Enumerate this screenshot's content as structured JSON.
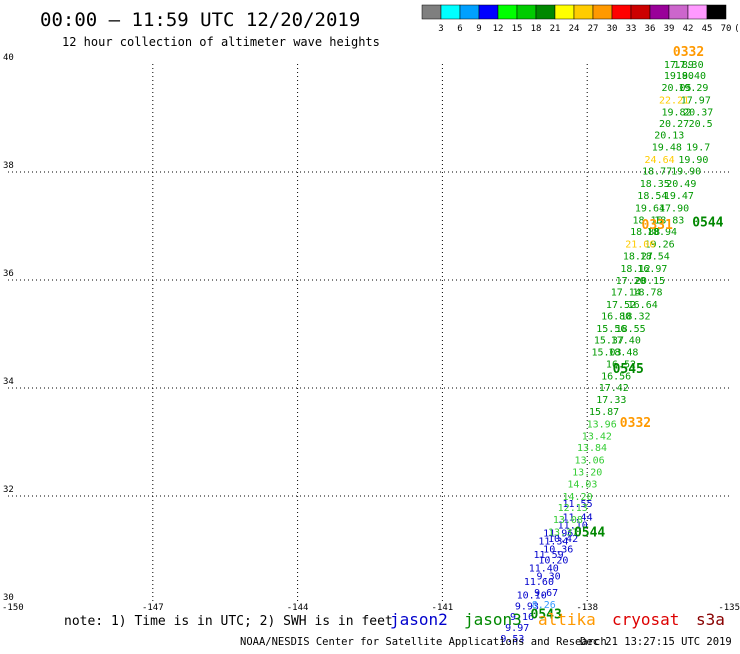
{
  "header": {
    "title": "00:00 – 11:59 UTC 12/20/2019",
    "subtitle": "12 hour collection of altimeter wave heights"
  },
  "legend_scale": {
    "labels": [
      "3",
      "6",
      "9",
      "12",
      "15",
      "18",
      "21",
      "24",
      "27",
      "30",
      "33",
      "36",
      "39",
      "42",
      "45",
      "70",
      "(ft)"
    ],
    "colors": [
      "#7f7f7f",
      "#00ffff",
      "#00a0ff",
      "#0000ff",
      "#00ff00",
      "#00cc00",
      "#008800",
      "#ffff00",
      "#ffcc00",
      "#ff9900",
      "#ff0000",
      "#cc0000",
      "#990099",
      "#cc66cc",
      "#ff99ff",
      "#000000"
    ]
  },
  "footer": {
    "note": "note:  1) Time is in UTC;  2) SWH is in feet",
    "credit": "NOAA/NESDIS Center for Satellite Applications and Research",
    "timestamp": "Dec 21 13:27:15 UTC 2019"
  },
  "satellite_legend": [
    {
      "name": "jason2",
      "color": "#0000cc"
    },
    {
      "name": "jason3",
      "color": "#008800"
    },
    {
      "name": "altika",
      "color": "#ff9900"
    },
    {
      "name": "cryosat",
      "color": "#dd0000"
    },
    {
      "name": "s3a",
      "color": "#880000"
    }
  ],
  "chart_data": {
    "type": "scatter",
    "xlim": [
      -150,
      -135
    ],
    "ylim": [
      30,
      40
    ],
    "x_ticks": [
      "-150",
      "-147",
      "-144",
      "-141",
      "-138",
      "-135"
    ],
    "y_ticks": [
      "30",
      "32",
      "34",
      "36",
      "38",
      "40"
    ],
    "grid": true,
    "series": [
      {
        "name": "jason2",
        "color": "#0000cc",
        "points": [
          {
            "lon": -138.2,
            "lat": 31.8,
            "value": "11.55"
          },
          {
            "lon": -138.2,
            "lat": 31.55,
            "value": "11.44"
          },
          {
            "lon": -138.3,
            "lat": 31.4,
            "value": "11.10"
          },
          {
            "lon": -138.5,
            "lat": 31.15,
            "value": "10.42"
          },
          {
            "lon": -138.6,
            "lat": 30.95,
            "value": "10.36"
          },
          {
            "lon": -138.7,
            "lat": 30.75,
            "value": "10.20"
          },
          {
            "lon": -138.8,
            "lat": 30.45,
            "value": "9.30"
          },
          {
            "lon": -138.85,
            "lat": 30.15,
            "value": "9.67"
          },
          {
            "lon": -138.6,
            "lat": 31.25,
            "value": "11.96"
          },
          {
            "lon": -138.7,
            "lat": 31.1,
            "value": "11.34"
          },
          {
            "lon": -138.8,
            "lat": 30.85,
            "value": "11.59"
          },
          {
            "lon": -138.9,
            "lat": 30.6,
            "value": "11.40"
          },
          {
            "lon": -139.0,
            "lat": 30.35,
            "value": "11.60"
          },
          {
            "lon": -139.15,
            "lat": 30.1,
            "value": "10.10"
          },
          {
            "lon": -139.25,
            "lat": 29.9,
            "value": "9.93"
          },
          {
            "lon": -139.35,
            "lat": 29.7,
            "value": "9.16"
          },
          {
            "lon": -139.45,
            "lat": 29.5,
            "value": "9.97"
          },
          {
            "lon": -139.55,
            "lat": 29.3,
            "value": "9.53"
          }
        ]
      },
      {
        "name": "jason3",
        "color": "#009900",
        "points": [
          {
            "lon": -136.1,
            "lat": 39.93,
            "value": "17.89"
          },
          {
            "lon": -136.1,
            "lat": 39.72,
            "value": "19.90"
          },
          {
            "lon": -136.15,
            "lat": 39.5,
            "value": "20.05"
          },
          {
            "lon": -136.15,
            "lat": 39.05,
            "value": "19.82"
          },
          {
            "lon": -136.2,
            "lat": 38.83,
            "value": "20.27"
          },
          {
            "lon": -136.3,
            "lat": 38.62,
            "value": "20.13"
          },
          {
            "lon": -136.35,
            "lat": 38.4,
            "value": "19.48"
          },
          {
            "lon": -136.55,
            "lat": 37.95,
            "value": "18.77"
          },
          {
            "lon": -136.6,
            "lat": 37.72,
            "value": "18.35"
          },
          {
            "lon": -136.65,
            "lat": 37.5,
            "value": "18.54"
          },
          {
            "lon": -136.7,
            "lat": 37.27,
            "value": "19.64"
          },
          {
            "lon": -136.75,
            "lat": 37.05,
            "value": "18.15"
          },
          {
            "lon": -136.8,
            "lat": 36.83,
            "value": "18.88"
          },
          {
            "lon": -136.95,
            "lat": 36.38,
            "value": "18.27"
          },
          {
            "lon": -137.0,
            "lat": 36.15,
            "value": "18.12"
          },
          {
            "lon": -137.1,
            "lat": 35.93,
            "value": "17.20"
          },
          {
            "lon": -137.2,
            "lat": 35.71,
            "value": "17.14"
          },
          {
            "lon": -137.3,
            "lat": 35.48,
            "value": "17.52"
          },
          {
            "lon": -137.4,
            "lat": 35.27,
            "value": "16.80"
          },
          {
            "lon": -137.5,
            "lat": 35.04,
            "value": "15.56"
          },
          {
            "lon": -137.55,
            "lat": 34.82,
            "value": "15.37"
          },
          {
            "lon": -137.6,
            "lat": 34.6,
            "value": "15.03"
          },
          {
            "lon": -135.9,
            "lat": 39.93,
            "value": "17.30"
          },
          {
            "lon": -135.85,
            "lat": 39.72,
            "value": "18.40"
          },
          {
            "lon": -135.8,
            "lat": 39.5,
            "value": "19.29"
          },
          {
            "lon": -135.75,
            "lat": 39.27,
            "value": "17.97"
          },
          {
            "lon": -135.7,
            "lat": 39.05,
            "value": "20.37"
          },
          {
            "lon": -135.65,
            "lat": 38.83,
            "value": "20.5"
          },
          {
            "lon": -135.7,
            "lat": 38.4,
            "value": "19.7"
          },
          {
            "lon": -135.8,
            "lat": 38.17,
            "value": "19.90"
          },
          {
            "lon": -135.95,
            "lat": 37.95,
            "value": "19.90"
          },
          {
            "lon": -136.05,
            "lat": 37.72,
            "value": "20.49"
          },
          {
            "lon": -136.1,
            "lat": 37.5,
            "value": "19.47"
          },
          {
            "lon": -136.2,
            "lat": 37.27,
            "value": "17.90"
          },
          {
            "lon": -136.3,
            "lat": 37.05,
            "value": "18.83"
          },
          {
            "lon": -136.45,
            "lat": 36.83,
            "value": "18.94"
          },
          {
            "lon": -136.5,
            "lat": 36.6,
            "value": "19.26"
          },
          {
            "lon": -136.6,
            "lat": 36.38,
            "value": "18.54"
          },
          {
            "lon": -136.65,
            "lat": 36.15,
            "value": "16.97"
          },
          {
            "lon": -136.7,
            "lat": 35.93,
            "value": "20.15"
          },
          {
            "lon": -136.75,
            "lat": 35.71,
            "value": "18.78"
          },
          {
            "lon": -136.85,
            "lat": 35.48,
            "value": "16.64"
          },
          {
            "lon": -137.0,
            "lat": 35.27,
            "value": "18.32"
          },
          {
            "lon": -137.1,
            "lat": 35.04,
            "value": "18.55"
          },
          {
            "lon": -137.2,
            "lat": 34.82,
            "value": "17.40"
          },
          {
            "lon": -137.25,
            "lat": 34.6,
            "value": "18.48"
          },
          {
            "lon": -137.3,
            "lat": 34.38,
            "value": "16.52"
          },
          {
            "lon": -137.4,
            "lat": 34.16,
            "value": "16.56"
          },
          {
            "lon": -137.45,
            "lat": 33.94,
            "value": "17.42"
          },
          {
            "lon": -137.5,
            "lat": 33.72,
            "value": "17.33"
          },
          {
            "lon": -137.65,
            "lat": 33.5,
            "value": "15.87"
          }
        ]
      },
      {
        "name": "jason3-light",
        "color": "#33cc33",
        "points": [
          {
            "lon": -137.7,
            "lat": 33.27,
            "value": "13.96"
          },
          {
            "lon": -137.8,
            "lat": 33.05,
            "value": "13.42"
          },
          {
            "lon": -137.9,
            "lat": 32.83,
            "value": "13.84"
          },
          {
            "lon": -137.95,
            "lat": 32.6,
            "value": "13.06"
          },
          {
            "lon": -138.0,
            "lat": 32.38,
            "value": "13.20"
          },
          {
            "lon": -138.1,
            "lat": 32.16,
            "value": "14.03"
          },
          {
            "lon": -138.2,
            "lat": 31.93,
            "value": "14.20"
          },
          {
            "lon": -138.3,
            "lat": 31.72,
            "value": "12.13"
          },
          {
            "lon": -138.4,
            "lat": 31.5,
            "value": "13.08"
          },
          {
            "lon": -138.5,
            "lat": 31.27,
            "value": "13.37"
          }
        ]
      },
      {
        "name": "altika",
        "color": "#ffcc00",
        "points": [
          {
            "lon": -136.2,
            "lat": 39.27,
            "value": "22.21"
          },
          {
            "lon": -136.5,
            "lat": 38.17,
            "value": "24.64"
          },
          {
            "lon": -136.9,
            "lat": 36.6,
            "value": "21.06"
          }
        ]
      },
      {
        "name": "jason2-light",
        "color": "#3399ff",
        "points": [
          {
            "lon": -138.9,
            "lat": 29.93,
            "value": "8.26"
          }
        ]
      }
    ],
    "pass_labels": [
      {
        "lon": -135.9,
        "lat": 40.15,
        "text": "0332",
        "color": "#ff9900"
      },
      {
        "lon": -136.55,
        "lat": 36.94,
        "text": "0331",
        "color": "#ff9900"
      },
      {
        "lon": -137.0,
        "lat": 33.28,
        "text": "0332",
        "color": "#ff9900"
      },
      {
        "lon": -135.5,
        "lat": 36.99,
        "text": "0544",
        "color": "#008800"
      },
      {
        "lon": -137.15,
        "lat": 34.28,
        "text": "0545",
        "color": "#008800"
      },
      {
        "lon": -137.95,
        "lat": 31.25,
        "text": "0544",
        "color": "#008800"
      },
      {
        "lon": -138.85,
        "lat": 29.73,
        "text": "0543",
        "color": "#008800"
      }
    ]
  }
}
